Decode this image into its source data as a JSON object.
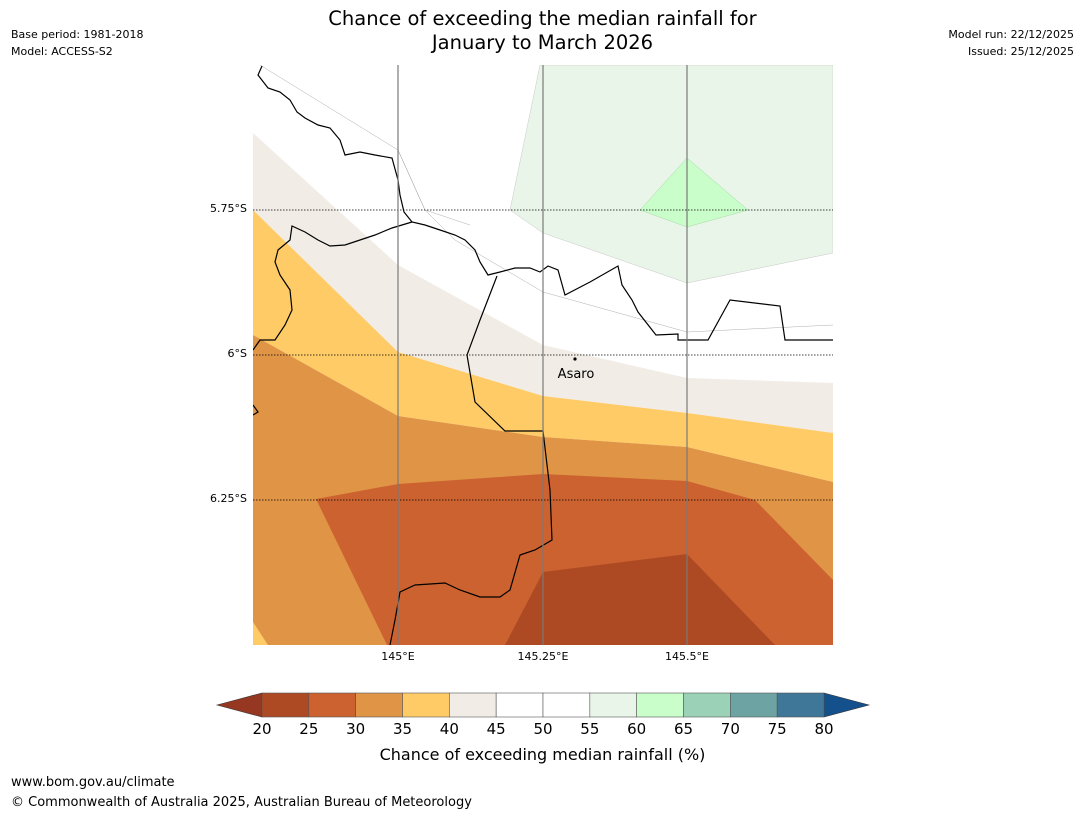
{
  "title": {
    "line1": "Chance of exceeding the median rainfall for",
    "line2": "January to March 2026"
  },
  "meta": {
    "base_period": "Base period: 1981-2018",
    "model": "Model: ACCESS-S2",
    "model_run": "Model run: 22/12/2025",
    "issued": "Issued: 25/12/2025"
  },
  "map": {
    "lat_labels": [
      "5.75°S",
      "6°S",
      "6.25°S"
    ],
    "lon_labels": [
      "145°E",
      "145.25°E",
      "145.5°E"
    ],
    "place_label": "Asaro"
  },
  "colorbar": {
    "title": "Chance of exceeding median rainfall (%)",
    "ticks": [
      "20",
      "25",
      "30",
      "35",
      "40",
      "45",
      "50",
      "55",
      "60",
      "65",
      "70",
      "75",
      "80"
    ],
    "colors": [
      "#ad4a24",
      "#cc6230",
      "#e09446",
      "#fecb67",
      "#f1ede6",
      "#ffffff",
      "#ffffff",
      "#e9f5e8",
      "#c9fdc9",
      "#9bd1b7",
      "#6ea3a4",
      "#3e7797"
    ],
    "under_color": "#963721",
    "over_color": "#14518c"
  },
  "footer": {
    "url": "www.bom.gov.au/climate",
    "copyright": "© Commonwealth of Australia 2025, Australian Bureau of Meteorology"
  }
}
